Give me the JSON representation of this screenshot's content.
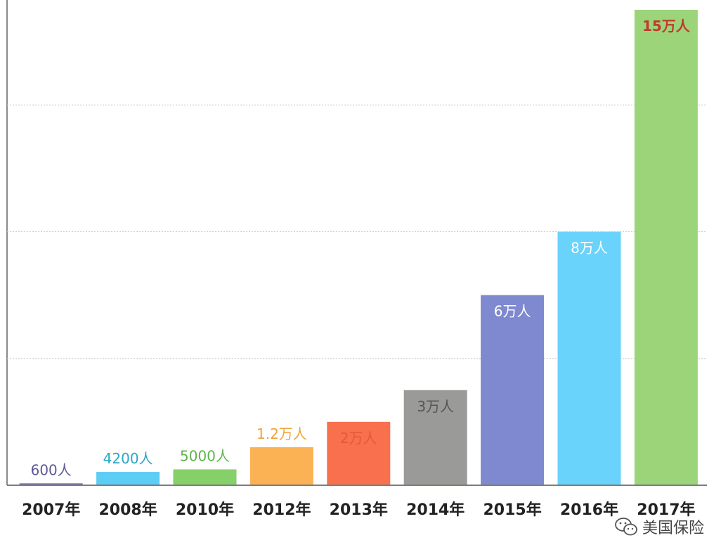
{
  "chart_data": {
    "type": "bar",
    "categories": [
      "2007年",
      "2008年",
      "2010年",
      "2012年",
      "2013年",
      "2014年",
      "2015年",
      "2016年",
      "2017年"
    ],
    "values": [
      600,
      4200,
      5000,
      12000,
      20000,
      30000,
      60000,
      80000,
      150000
    ],
    "data_labels": [
      "600人",
      "4200人",
      "5000人",
      "1.2万人",
      "2万人",
      "3万人",
      "6万人",
      "8万人",
      "15万人"
    ],
    "bar_colors": [
      "#7b6fb5",
      "#5ccdf5",
      "#86d06a",
      "#fbb255",
      "#f8704e",
      "#9a9a98",
      "#7f89cf",
      "#6ad3fb",
      "#9cd47a"
    ],
    "label_colors": [
      "#5d5897",
      "#2aa6c8",
      "#5fb44a",
      "#f0a23a",
      "#e05a35",
      "#555555",
      "#ffffff",
      "#ffffff",
      "#c0392b"
    ],
    "ylim": [
      0,
      150000
    ],
    "gridlines": [
      40000,
      80000,
      120000
    ],
    "grid": true,
    "title": "",
    "xlabel": "",
    "ylabel": ""
  },
  "watermark": {
    "icon": "wechat-icon",
    "text": "美国保险"
  }
}
